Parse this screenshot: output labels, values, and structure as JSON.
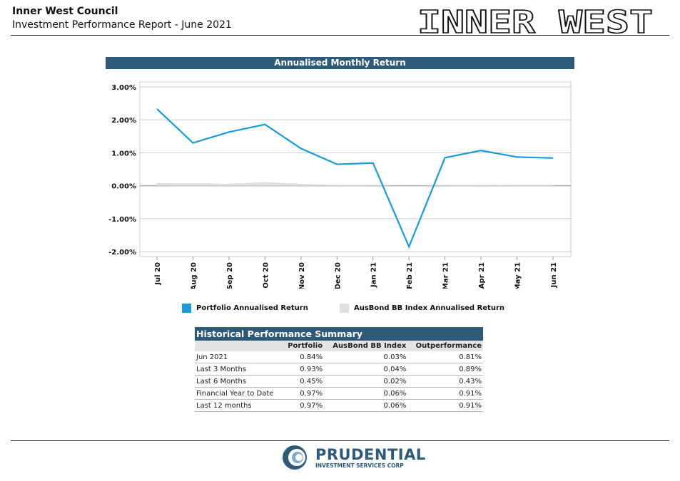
{
  "header": {
    "org": "Inner West Council",
    "subtitle": "Investment Performance Report - June 2021",
    "logo_text": "INNER WEST"
  },
  "chart_title": "Annualised Monthly Return",
  "chart_data": {
    "type": "line",
    "title": "Annualised Monthly Return",
    "categories": [
      "Jul 20",
      "Aug 20",
      "Sep 20",
      "Oct 20",
      "Nov 20",
      "Dec 20",
      "Jan 21",
      "Feb 21",
      "Mar 21",
      "Apr 21",
      "May 21",
      "Jun 21"
    ],
    "series": [
      {
        "name": "Portfolio Annualised Return",
        "color": "#1a9ad6",
        "type": "line",
        "values": [
          2.33,
          1.3,
          1.63,
          1.86,
          1.13,
          0.65,
          0.69,
          -1.85,
          0.85,
          1.07,
          0.87,
          0.84
        ]
      },
      {
        "name": "AusBond BB Index Annualised Return",
        "color": "#e0e0e0",
        "type": "area",
        "values": [
          0.08,
          0.07,
          0.06,
          0.11,
          0.06,
          0.02,
          0.01,
          0.0,
          0.01,
          0.02,
          0.03,
          0.03
        ]
      }
    ],
    "yticks": [
      "3.00%",
      "2.00%",
      "1.00%",
      "0.00%",
      "-1.00%",
      "-2.00%"
    ],
    "ytick_values": [
      3,
      2,
      1,
      0,
      -1,
      -2
    ],
    "ylim": [
      -2.1,
      3.1
    ],
    "grid": true,
    "legend": "bottom"
  },
  "summary": {
    "title": "Historical Performance Summary",
    "columns": [
      "",
      "Portfolio",
      "AusBond BB Index",
      "Outperformance"
    ],
    "rows": [
      [
        "Jun 2021",
        "0.84%",
        "0.03%",
        "0.81%"
      ],
      [
        "Last 3 Months",
        "0.93%",
        "0.04%",
        "0.89%"
      ],
      [
        "Last 6 Months",
        "0.45%",
        "0.02%",
        "0.43%"
      ],
      [
        "Financial Year to Date",
        "0.97%",
        "0.06%",
        "0.91%"
      ],
      [
        "Last 12 months",
        "0.97%",
        "0.06%",
        "0.91%"
      ]
    ]
  },
  "footer": {
    "brand": "PRUDENTIAL",
    "brand_sub": "INVESTMENT SERVICES CORP"
  }
}
